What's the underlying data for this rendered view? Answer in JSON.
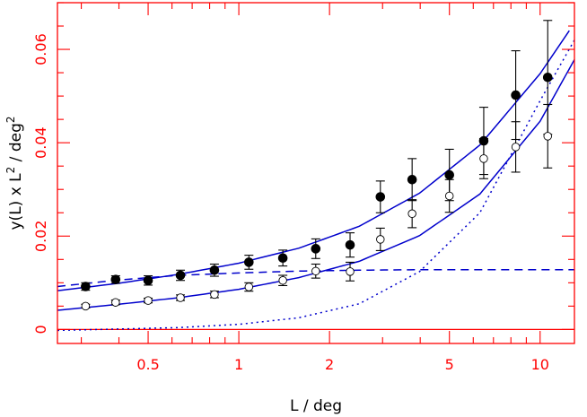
{
  "chart_data": {
    "type": "scatter",
    "title": "",
    "xlabel": "L / deg",
    "ylabel": "y(L) x L",
    "ylabel_sup": "2",
    "ylabel_tail": " / deg",
    "ylabel_tail_sup": "2",
    "xscale": "log",
    "xlim": [
      0.25,
      13
    ],
    "ylim": [
      -0.003,
      0.07
    ],
    "x_ticks": [
      {
        "value": 0.5,
        "label": "0.5"
      },
      {
        "value": 1,
        "label": "1"
      },
      {
        "value": 2,
        "label": "2"
      },
      {
        "value": 5,
        "label": "5"
      },
      {
        "value": 10,
        "label": "10"
      }
    ],
    "y_ticks": [
      {
        "value": 0,
        "label": "0"
      },
      {
        "value": 0.02,
        "label": "0.02"
      },
      {
        "value": 0.04,
        "label": "0.04"
      },
      {
        "value": 0.06,
        "label": "0.06"
      }
    ],
    "grid": false,
    "zero_line": true,
    "colors": {
      "axis": "#ff0000",
      "curve": "#0000cc",
      "points": "#000000"
    },
    "series": [
      {
        "marker": "filled-circle",
        "points": [
          {
            "x": 0.31,
            "y": 0.0092,
            "err": 0.0008
          },
          {
            "x": 0.39,
            "y": 0.0107,
            "err": 0.0008
          },
          {
            "x": 0.5,
            "y": 0.0105,
            "err": 0.001
          },
          {
            "x": 0.64,
            "y": 0.0116,
            "err": 0.0011
          },
          {
            "x": 0.83,
            "y": 0.0127,
            "err": 0.0013
          },
          {
            "x": 1.08,
            "y": 0.0144,
            "err": 0.0015
          },
          {
            "x": 1.4,
            "y": 0.0153,
            "err": 0.0017
          },
          {
            "x": 1.8,
            "y": 0.0173,
            "err": 0.0021
          },
          {
            "x": 2.34,
            "y": 0.0181,
            "err": 0.0026
          },
          {
            "x": 2.95,
            "y": 0.0284,
            "err": 0.0034
          },
          {
            "x": 3.76,
            "y": 0.0321,
            "err": 0.0045
          },
          {
            "x": 5.0,
            "y": 0.0331,
            "err": 0.0055
          },
          {
            "x": 6.5,
            "y": 0.0404,
            "err": 0.0072
          },
          {
            "x": 8.3,
            "y": 0.0502,
            "err": 0.0095
          },
          {
            "x": 10.6,
            "y": 0.054,
            "err": 0.0122
          }
        ]
      },
      {
        "marker": "open-circle",
        "points": [
          {
            "x": 0.31,
            "y": 0.005,
            "err": 0.0004
          },
          {
            "x": 0.39,
            "y": 0.0058,
            "err": 0.0005
          },
          {
            "x": 0.5,
            "y": 0.0062,
            "err": 0.0005
          },
          {
            "x": 0.64,
            "y": 0.0068,
            "err": 0.0006
          },
          {
            "x": 0.83,
            "y": 0.0075,
            "err": 0.0007
          },
          {
            "x": 1.08,
            "y": 0.0091,
            "err": 0.0009
          },
          {
            "x": 1.4,
            "y": 0.0105,
            "err": 0.0011
          },
          {
            "x": 1.8,
            "y": 0.0125,
            "err": 0.0015
          },
          {
            "x": 2.34,
            "y": 0.0124,
            "err": 0.002
          },
          {
            "x": 2.95,
            "y": 0.0193,
            "err": 0.0024
          },
          {
            "x": 3.76,
            "y": 0.0248,
            "err": 0.003
          },
          {
            "x": 5.0,
            "y": 0.0286,
            "err": 0.0035
          },
          {
            "x": 6.5,
            "y": 0.0366,
            "err": 0.0043
          },
          {
            "x": 8.3,
            "y": 0.0391,
            "err": 0.0054
          },
          {
            "x": 10.6,
            "y": 0.0414,
            "err": 0.0068
          }
        ]
      }
    ],
    "curves": [
      {
        "style": "solid",
        "points": [
          [
            0.25,
            0.0083
          ],
          [
            0.4,
            0.0099
          ],
          [
            0.63,
            0.0118
          ],
          [
            1.0,
            0.0142
          ],
          [
            1.58,
            0.0174
          ],
          [
            2.51,
            0.0221
          ],
          [
            3.98,
            0.0292
          ],
          [
            6.31,
            0.0395
          ],
          [
            10.0,
            0.0548
          ],
          [
            12.5,
            0.064
          ]
        ]
      },
      {
        "style": "solid",
        "points": [
          [
            0.25,
            0.0041
          ],
          [
            0.4,
            0.0054
          ],
          [
            0.63,
            0.0068
          ],
          [
            1.0,
            0.0086
          ],
          [
            1.58,
            0.0111
          ],
          [
            2.51,
            0.0146
          ],
          [
            3.98,
            0.0201
          ],
          [
            6.31,
            0.029
          ],
          [
            10.0,
            0.0446
          ],
          [
            13.0,
            0.0578
          ]
        ]
      },
      {
        "style": "dashed",
        "points": [
          [
            0.25,
            0.0092
          ],
          [
            0.4,
            0.0106
          ],
          [
            0.63,
            0.0116
          ],
          [
            1.0,
            0.0121
          ],
          [
            1.58,
            0.0125
          ],
          [
            2.51,
            0.0127
          ],
          [
            3.98,
            0.0128
          ],
          [
            6.31,
            0.0128
          ],
          [
            10.0,
            0.0128
          ],
          [
            13.0,
            0.0128
          ]
        ]
      },
      {
        "style": "dotted",
        "points": [
          [
            0.25,
            -0.0002
          ],
          [
            0.4,
            0.0001
          ],
          [
            0.63,
            0.0004
          ],
          [
            1.0,
            0.0011
          ],
          [
            1.58,
            0.0025
          ],
          [
            2.51,
            0.0055
          ],
          [
            3.98,
            0.0124
          ],
          [
            6.31,
            0.025
          ],
          [
            10.0,
            0.049
          ],
          [
            13.0,
            0.062
          ]
        ]
      }
    ]
  }
}
